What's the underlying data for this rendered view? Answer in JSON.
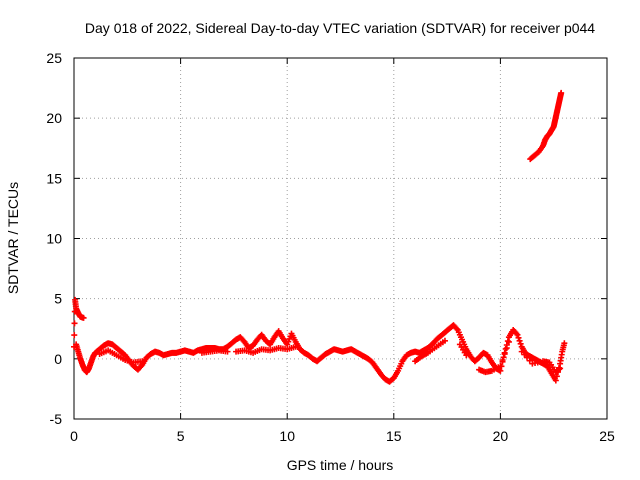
{
  "chart_data": {
    "type": "scatter",
    "title": "Day 018 of 2022, Sidereal Day-to-day VTEC variation (SDTVAR) for receiver p044",
    "xlabel": "GPS time / hours",
    "ylabel": "SDTVAR / TECUs",
    "xlim": [
      0,
      25
    ],
    "ylim": [
      -5,
      25
    ],
    "xticks": [
      0,
      5,
      10,
      15,
      20,
      25
    ],
    "yticks": [
      -5,
      0,
      5,
      10,
      15,
      20,
      25
    ],
    "grid": true,
    "marker": "plus",
    "series": [
      {
        "name": "SDTVAR",
        "color": "#ff0000",
        "points": [
          [
            0.0,
            1.0
          ],
          [
            0.05,
            4.9
          ],
          [
            0.1,
            4.2
          ],
          [
            0.2,
            3.8
          ],
          [
            0.3,
            3.5
          ],
          [
            0.45,
            3.4
          ],
          [
            0.1,
            1.2
          ],
          [
            0.2,
            0.6
          ],
          [
            0.3,
            0.0
          ],
          [
            0.4,
            -0.5
          ],
          [
            0.5,
            -0.9
          ],
          [
            0.6,
            -1.1
          ],
          [
            0.7,
            -0.8
          ],
          [
            0.8,
            -0.3
          ],
          [
            0.9,
            0.2
          ],
          [
            1.0,
            0.5
          ],
          [
            1.2,
            0.8
          ],
          [
            1.4,
            1.1
          ],
          [
            1.6,
            1.3
          ],
          [
            1.8,
            1.2
          ],
          [
            2.0,
            0.9
          ],
          [
            2.2,
            0.6
          ],
          [
            2.4,
            0.3
          ],
          [
            2.6,
            -0.2
          ],
          [
            2.8,
            -0.6
          ],
          [
            3.0,
            -0.9
          ],
          [
            3.2,
            -0.5
          ],
          [
            3.4,
            0.1
          ],
          [
            3.6,
            0.4
          ],
          [
            3.8,
            0.6
          ],
          [
            4.0,
            0.5
          ],
          [
            4.2,
            0.3
          ],
          [
            4.4,
            0.4
          ],
          [
            4.6,
            0.5
          ],
          [
            4.8,
            0.5
          ],
          [
            5.0,
            0.6
          ],
          [
            5.2,
            0.7
          ],
          [
            5.4,
            0.6
          ],
          [
            5.6,
            0.5
          ],
          [
            5.8,
            0.7
          ],
          [
            6.0,
            0.8
          ],
          [
            6.2,
            0.9
          ],
          [
            6.4,
            0.9
          ],
          [
            6.6,
            0.9
          ],
          [
            6.8,
            0.8
          ],
          [
            7.0,
            0.8
          ],
          [
            7.2,
            1.0
          ],
          [
            7.4,
            1.3
          ],
          [
            7.6,
            1.6
          ],
          [
            7.8,
            1.8
          ],
          [
            8.0,
            1.4
          ],
          [
            8.2,
            0.9
          ],
          [
            8.4,
            1.1
          ],
          [
            8.6,
            1.6
          ],
          [
            8.8,
            2.0
          ],
          [
            9.0,
            1.5
          ],
          [
            9.2,
            1.2
          ],
          [
            9.4,
            1.8
          ],
          [
            9.6,
            2.3
          ],
          [
            9.8,
            1.7
          ],
          [
            10.0,
            1.2
          ],
          [
            10.2,
            2.1
          ],
          [
            10.4,
            1.4
          ],
          [
            10.6,
            0.8
          ],
          [
            10.8,
            0.5
          ],
          [
            11.0,
            0.3
          ],
          [
            11.2,
            0.0
          ],
          [
            11.4,
            -0.2
          ],
          [
            11.6,
            0.1
          ],
          [
            11.8,
            0.4
          ],
          [
            12.0,
            0.6
          ],
          [
            12.2,
            0.8
          ],
          [
            12.4,
            0.7
          ],
          [
            12.6,
            0.6
          ],
          [
            12.8,
            0.7
          ],
          [
            13.0,
            0.8
          ],
          [
            13.2,
            0.6
          ],
          [
            13.4,
            0.4
          ],
          [
            13.6,
            0.2
          ],
          [
            13.8,
            0.0
          ],
          [
            14.0,
            -0.3
          ],
          [
            14.2,
            -0.8
          ],
          [
            14.4,
            -1.3
          ],
          [
            14.6,
            -1.7
          ],
          [
            14.8,
            -1.9
          ],
          [
            15.0,
            -1.6
          ],
          [
            15.2,
            -1.0
          ],
          [
            15.4,
            -0.2
          ],
          [
            15.6,
            0.3
          ],
          [
            15.8,
            0.5
          ],
          [
            16.0,
            0.6
          ],
          [
            16.2,
            0.5
          ],
          [
            16.4,
            0.7
          ],
          [
            16.6,
            0.9
          ],
          [
            16.8,
            1.2
          ],
          [
            17.0,
            1.6
          ],
          [
            17.2,
            1.9
          ],
          [
            17.4,
            2.2
          ],
          [
            17.6,
            2.5
          ],
          [
            17.8,
            2.8
          ],
          [
            18.0,
            2.4
          ],
          [
            18.2,
            1.6
          ],
          [
            18.4,
            0.8
          ],
          [
            18.6,
            0.2
          ],
          [
            18.8,
            -0.2
          ],
          [
            19.0,
            0.1
          ],
          [
            19.2,
            0.5
          ],
          [
            19.4,
            0.3
          ],
          [
            19.6,
            -0.3
          ],
          [
            19.8,
            -0.8
          ],
          [
            20.0,
            -1.0
          ],
          [
            20.2,
            0.5
          ],
          [
            20.4,
            1.8
          ],
          [
            20.6,
            2.4
          ],
          [
            20.8,
            2.0
          ],
          [
            21.0,
            1.0
          ],
          [
            21.2,
            0.4
          ],
          [
            21.4,
            0.2
          ],
          [
            21.6,
            0.0
          ],
          [
            21.8,
            -0.2
          ],
          [
            22.0,
            -0.4
          ],
          [
            22.2,
            -0.6
          ],
          [
            22.4,
            -1.2
          ],
          [
            22.6,
            -1.8
          ],
          [
            22.8,
            -0.4
          ],
          [
            22.9,
            0.6
          ],
          [
            23.0,
            1.3
          ],
          [
            19.0,
            -0.9
          ],
          [
            19.3,
            -1.1
          ],
          [
            19.6,
            -1.0
          ],
          [
            20.0,
            -0.6
          ],
          [
            20.4,
            1.4
          ],
          [
            21.0,
            0.6
          ],
          [
            21.5,
            -0.4
          ],
          [
            22.0,
            -0.2
          ],
          [
            22.3,
            -0.3
          ],
          [
            22.6,
            -1.1
          ],
          [
            22.8,
            -0.8
          ],
          [
            16.0,
            -0.2
          ],
          [
            16.3,
            0.2
          ],
          [
            16.6,
            0.5
          ],
          [
            17.0,
            1.0
          ],
          [
            17.4,
            1.5
          ],
          [
            18.1,
            1.2
          ],
          [
            18.4,
            0.3
          ],
          [
            7.6,
            0.6
          ],
          [
            8.0,
            0.7
          ],
          [
            8.4,
            0.5
          ],
          [
            8.8,
            0.8
          ],
          [
            9.2,
            0.7
          ],
          [
            9.6,
            0.9
          ],
          [
            10.0,
            0.8
          ],
          [
            10.4,
            1.0
          ],
          [
            6.0,
            0.5
          ],
          [
            6.4,
            0.6
          ],
          [
            6.8,
            0.7
          ],
          [
            7.2,
            0.6
          ],
          [
            1.2,
            0.4
          ],
          [
            1.6,
            0.7
          ],
          [
            2.0,
            0.3
          ],
          [
            2.4,
            -0.1
          ],
          [
            2.8,
            -0.3
          ],
          [
            3.2,
            -0.2
          ],
          [
            21.4,
            16.6
          ],
          [
            21.6,
            16.9
          ],
          [
            21.8,
            17.2
          ],
          [
            22.0,
            17.7
          ],
          [
            22.1,
            18.2
          ],
          [
            22.2,
            18.5
          ],
          [
            22.3,
            18.7
          ],
          [
            22.4,
            19.0
          ],
          [
            22.5,
            19.3
          ],
          [
            22.55,
            19.7
          ],
          [
            22.6,
            20.1
          ],
          [
            22.65,
            20.5
          ],
          [
            22.7,
            20.9
          ],
          [
            22.75,
            21.3
          ],
          [
            22.8,
            21.7
          ],
          [
            22.85,
            22.1
          ]
        ]
      }
    ]
  }
}
